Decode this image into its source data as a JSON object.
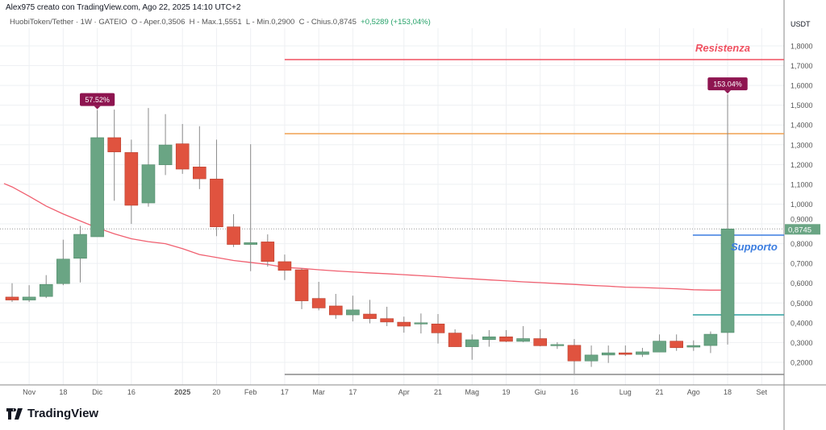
{
  "caption": "Alex975 creato con TradingView.com, Ago 22, 2025 14:10 UTC+2",
  "legend": {
    "symbol": "HuobiToken/Tether · 1W · GATEIO",
    "open": "O - Aper.0,3506",
    "high": "H - Max.1,5551",
    "low": "L - Min.0,2900",
    "close": "C - Chius.0,8745",
    "change": "+0,5289 (+153,04%)"
  },
  "logo": "TradingView",
  "chart_data": {
    "type": "candlestick",
    "currency_label": "USDT",
    "ylim": [
      0.1,
      1.9
    ],
    "y_ticks": [
      "0,2000",
      "0,3000",
      "0,4000",
      "0,5000",
      "0,6000",
      "0,7000",
      "0,8000",
      "0,9000",
      "1,0000",
      "1,1000",
      "1,2000",
      "1,3000",
      "1,4000",
      "1,5000",
      "1,6000",
      "1,7000",
      "1,8000"
    ],
    "y_tick_values": [
      0.2,
      0.3,
      0.4,
      0.5,
      0.6,
      0.7,
      0.8,
      0.9,
      1.0,
      1.1,
      1.2,
      1.3,
      1.4,
      1.5,
      1.6,
      1.7,
      1.8
    ],
    "x_ticks": [
      {
        "label": "Nov",
        "candle": 2
      },
      {
        "label": "18",
        "candle": 4
      },
      {
        "label": "Dic",
        "candle": 6
      },
      {
        "label": "16",
        "candle": 8
      },
      {
        "label": "2025",
        "candle": 11,
        "bold": true
      },
      {
        "label": "20",
        "candle": 13
      },
      {
        "label": "Feb",
        "candle": 15
      },
      {
        "label": "17",
        "candle": 17
      },
      {
        "label": "Mar",
        "candle": 19
      },
      {
        "label": "17",
        "candle": 21
      },
      {
        "label": "Apr",
        "candle": 24
      },
      {
        "label": "21",
        "candle": 26
      },
      {
        "label": "Mag",
        "candle": 28
      },
      {
        "label": "19",
        "candle": 30
      },
      {
        "label": "Giu",
        "candle": 32
      },
      {
        "label": "16",
        "candle": 34
      },
      {
        "label": "Lug",
        "candle": 37
      },
      {
        "label": "21",
        "candle": 39
      },
      {
        "label": "Ago",
        "candle": 41
      },
      {
        "label": "18",
        "candle": 43
      },
      {
        "label": "Set",
        "candle": 45
      }
    ],
    "candles": [
      [
        0.53,
        0.6,
        0.505,
        0.515
      ],
      [
        0.515,
        0.59,
        0.505,
        0.53
      ],
      [
        0.533,
        0.641,
        0.525,
        0.594
      ],
      [
        0.598,
        0.82,
        0.59,
        0.722
      ],
      [
        0.726,
        0.89,
        0.604,
        0.847
      ],
      [
        0.835,
        1.476,
        0.835,
        1.336
      ],
      [
        1.336,
        1.478,
        1.017,
        1.264
      ],
      [
        1.261,
        1.326,
        0.9,
        0.994
      ],
      [
        1.006,
        1.486,
        0.987,
        1.199
      ],
      [
        1.199,
        1.455,
        1.147,
        1.299
      ],
      [
        1.305,
        1.405,
        1.153,
        1.177
      ],
      [
        1.188,
        1.394,
        1.076,
        1.128
      ],
      [
        1.127,
        1.326,
        0.838,
        0.885
      ],
      [
        0.885,
        0.949,
        0.783,
        0.796
      ],
      [
        0.796,
        1.303,
        0.661,
        0.805
      ],
      [
        0.809,
        0.847,
        0.684,
        0.71
      ],
      [
        0.709,
        0.745,
        0.616,
        0.665
      ],
      [
        0.668,
        0.676,
        0.469,
        0.511
      ],
      [
        0.523,
        0.607,
        0.463,
        0.475
      ],
      [
        0.485,
        0.546,
        0.42,
        0.44
      ],
      [
        0.44,
        0.537,
        0.407,
        0.465
      ],
      [
        0.444,
        0.516,
        0.397,
        0.421
      ],
      [
        0.421,
        0.481,
        0.383,
        0.404
      ],
      [
        0.403,
        0.431,
        0.35,
        0.383
      ],
      [
        0.394,
        0.447,
        0.346,
        0.4
      ],
      [
        0.394,
        0.444,
        0.295,
        0.349
      ],
      [
        0.348,
        0.367,
        0.279,
        0.279
      ],
      [
        0.279,
        0.341,
        0.213,
        0.314
      ],
      [
        0.315,
        0.363,
        0.279,
        0.329
      ],
      [
        0.329,
        0.363,
        0.302,
        0.306
      ],
      [
        0.306,
        0.383,
        0.302,
        0.32
      ],
      [
        0.32,
        0.367,
        0.281,
        0.284
      ],
      [
        0.284,
        0.302,
        0.268,
        0.29
      ],
      [
        0.286,
        0.318,
        0.143,
        0.207
      ],
      [
        0.207,
        0.285,
        0.177,
        0.237
      ],
      [
        0.237,
        0.285,
        0.197,
        0.248
      ],
      [
        0.248,
        0.285,
        0.232,
        0.24
      ],
      [
        0.24,
        0.273,
        0.227,
        0.253
      ],
      [
        0.252,
        0.341,
        0.252,
        0.307
      ],
      [
        0.307,
        0.341,
        0.258,
        0.274
      ],
      [
        0.277,
        0.311,
        0.258,
        0.285
      ],
      [
        0.285,
        0.356,
        0.247,
        0.342
      ],
      [
        0.3506,
        1.5551,
        0.29,
        0.8745
      ]
    ],
    "moving_average": [
      1.087,
      1.04,
      0.99,
      0.95,
      0.915,
      0.88,
      0.85,
      0.825,
      0.81,
      0.8,
      0.775,
      0.745,
      0.73,
      0.715,
      0.705,
      0.695,
      0.68,
      0.675,
      0.668,
      0.662,
      0.657,
      0.652,
      0.648,
      0.643,
      0.638,
      0.633,
      0.627,
      0.622,
      0.617,
      0.612,
      0.607,
      0.603,
      0.598,
      0.594,
      0.589,
      0.585,
      0.58,
      0.578,
      0.575,
      0.572,
      0.567,
      0.565,
      0.565
    ],
    "current_price": {
      "value": 0.8745,
      "label": "0,8745"
    },
    "horizontal_lines": [
      {
        "name": "resistance",
        "value": 1.731,
        "color": "#f05060",
        "from_candle": 17,
        "label": "Resistenza"
      },
      {
        "name": "orange-level",
        "value": 1.356,
        "color": "#f0a050",
        "from_candle": 17
      },
      {
        "name": "support",
        "value": 0.843,
        "color": "#3b7de0",
        "from_candle": 42,
        "label": "Supporto"
      },
      {
        "name": "teal-level",
        "value": 0.44,
        "color": "#2fa0a0",
        "from_candle": 42
      },
      {
        "name": "bottom-level",
        "value": 0.139,
        "color": "#888888",
        "from_candle": 17
      }
    ],
    "annotations": [
      {
        "label": "57.52%",
        "candle": 6,
        "value": 1.476
      },
      {
        "label": "153.04%",
        "candle": 43,
        "value": 1.5551
      }
    ],
    "colors": {
      "up": "#6aa584",
      "down": "#e0533f",
      "ma": "#f06070",
      "tooltip": "#8e1550",
      "price_tag": "#6aa584"
    }
  }
}
